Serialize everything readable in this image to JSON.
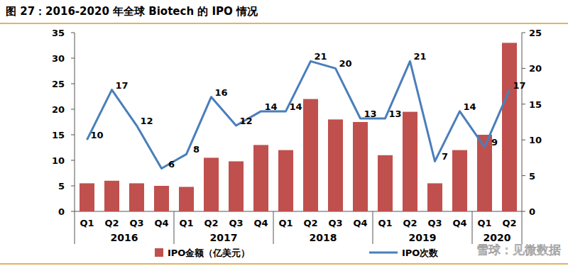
{
  "chart_data": {
    "type": "bar",
    "title": "图 27：2016-2020 年全球 Biotech 的 IPO 情况",
    "categories": [
      "Q1",
      "Q2",
      "Q3",
      "Q4",
      "Q1",
      "Q2",
      "Q3",
      "Q4",
      "Q1",
      "Q2",
      "Q3",
      "Q4",
      "Q1",
      "Q2",
      "Q3",
      "Q4",
      "Q1",
      "Q2"
    ],
    "category_groups": [
      "2016",
      "2016",
      "2016",
      "2016",
      "2017",
      "2017",
      "2017",
      "2017",
      "2018",
      "2018",
      "2018",
      "2018",
      "2019",
      "2019",
      "2019",
      "2019",
      "2020",
      "2020"
    ],
    "series": [
      {
        "name": "IPO金额（亿美元）",
        "type": "bar",
        "color": "#c0504d",
        "values": [
          5.5,
          6,
          5.5,
          5,
          4.8,
          10.5,
          9.8,
          13,
          12,
          22,
          18,
          17.5,
          11,
          19.5,
          5.5,
          12,
          15,
          33
        ]
      },
      {
        "name": "IPO次数",
        "type": "line",
        "axis": "y2",
        "color": "#4a7ebb",
        "data_labels": true,
        "values": [
          10,
          17,
          12,
          6,
          8,
          16,
          12,
          14,
          14,
          21,
          20,
          13,
          13,
          21,
          7,
          14,
          9,
          17
        ]
      }
    ],
    "ylim": [
      0,
      35
    ],
    "yticks": [
      0,
      5,
      10,
      15,
      20,
      25,
      30,
      35
    ],
    "y2lim": [
      0,
      25
    ],
    "y2ticks": [
      0,
      5,
      10,
      15,
      20,
      25
    ],
    "legend": "bottom",
    "annotations": [
      "雪球：见微数据"
    ]
  }
}
